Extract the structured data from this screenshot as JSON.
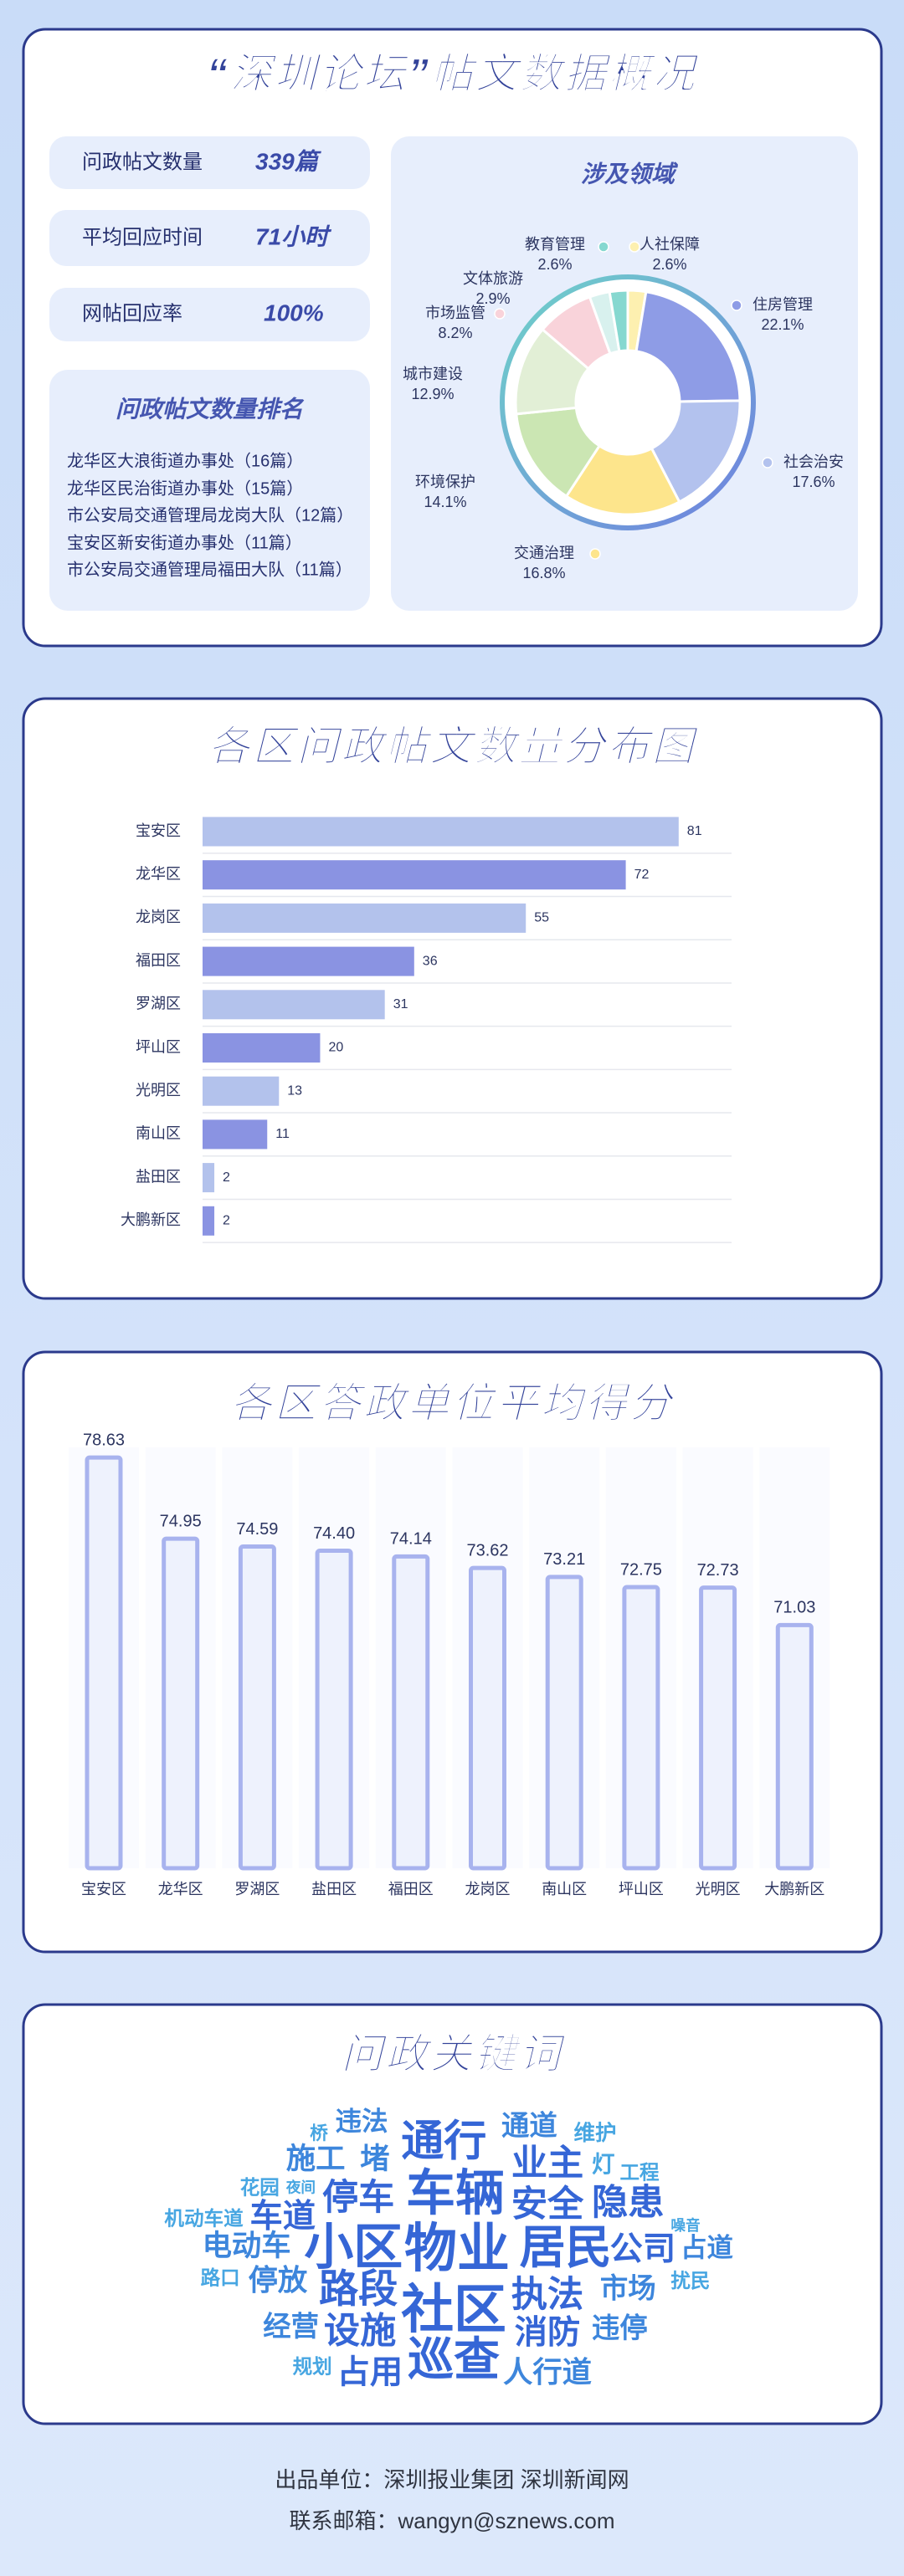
{
  "title": "“深圳论坛”帖文数据概况",
  "stats": [
    {
      "label": "问政帖文数量",
      "value": "339篇"
    },
    {
      "label": "平均回应时间",
      "value": "71小时"
    },
    {
      "label": "网帖回应率",
      "value": "100%"
    }
  ],
  "ranking": {
    "title": "问政帖文数量排名",
    "items": [
      "龙华区大浪街道办事处（16篇）",
      "龙华区民治街道办事处（15篇）",
      "市公安局交通管理局龙岗大队（12篇）",
      "宝安区新安街道办事处（11篇）",
      "市公安局交通管理局福田大队（11篇）"
    ]
  },
  "chart_data": [
    {
      "type": "pie",
      "title": "涉及领域",
      "categories": [
        "人社保障",
        "住房管理",
        "社会治安",
        "交通治理",
        "环境保护",
        "城市建设",
        "市场监管",
        "文体旅游",
        "教育管理"
      ],
      "values": [
        2.6,
        22.1,
        17.6,
        16.8,
        14.1,
        12.9,
        8.2,
        2.9,
        2.6
      ],
      "value_labels": [
        "2.6%",
        "22.1%",
        "17.6%",
        "16.8%",
        "14.1%",
        "12.9%",
        "8.2%",
        "2.9%",
        "2.6%"
      ],
      "colors": [
        "#fdf0b0",
        "#8e9ce6",
        "#b3c2ee",
        "#fde58c",
        "#cbe6b3",
        "#e2efd6",
        "#f9d3da",
        "#d8f1ee",
        "#86d8d0"
      ]
    },
    {
      "type": "hbar",
      "title": "各区问政帖文数量分布图",
      "categories": [
        "宝安区",
        "龙华区",
        "龙岗区",
        "福田区",
        "罗湖区",
        "坪山区",
        "光明区",
        "南山区",
        "盐田区",
        "大鹏新区"
      ],
      "values": [
        81,
        72,
        55,
        36,
        31,
        20,
        13,
        11,
        2,
        2
      ],
      "colors": [
        "#b3c2ec",
        "#8a93e2",
        "#b3c2ec",
        "#8a93e2",
        "#b3c2ec",
        "#8a93e2",
        "#b3c2ec",
        "#8a93e2",
        "#b3c2ec",
        "#8a93e2"
      ],
      "xlim": [
        0,
        90
      ]
    },
    {
      "type": "bar",
      "title": "各区答政单位平均得分",
      "categories": [
        "宝安区",
        "龙华区",
        "罗湖区",
        "盐田区",
        "福田区",
        "龙岗区",
        "南山区",
        "坪山区",
        "光明区",
        "大鹏新区"
      ],
      "values": [
        78.63,
        74.95,
        74.59,
        74.4,
        74.14,
        73.62,
        73.21,
        72.75,
        72.73,
        71.03
      ],
      "value_labels": [
        "78.63",
        "74.95",
        "74.59",
        "74.40",
        "74.14",
        "73.62",
        "73.21",
        "72.75",
        "72.73",
        "71.03"
      ],
      "color": "#eef2fd",
      "ylim": [
        60,
        80
      ]
    }
  ],
  "keywords": {
    "title": "问政关键词",
    "words": [
      "违法",
      "通道",
      "维护",
      "桥",
      "通行",
      "施工",
      "堵",
      "业主",
      "灯",
      "工程",
      "花园",
      "夜间",
      "停车",
      "车辆",
      "安全",
      "隐患",
      "机动车道",
      "车道",
      "噪音",
      "电动车",
      "小区",
      "物业",
      "居民",
      "公司",
      "占道",
      "路口",
      "停放",
      "路段",
      "执法",
      "市场",
      "扰民",
      "社区",
      "经营",
      "设施",
      "消防",
      "违停",
      "规划",
      "占用",
      "巡查",
      "人行道"
    ]
  },
  "footer": [
    "出品单位：深圳报业集团  深圳新闻网",
    "联系邮箱：wangyn@sznews.com"
  ]
}
